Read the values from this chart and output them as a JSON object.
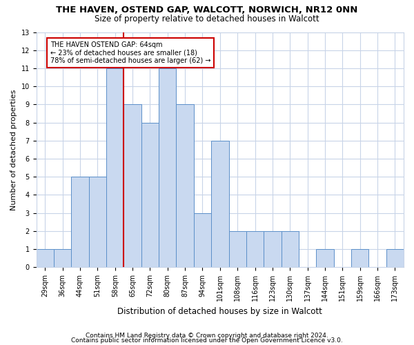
{
  "title1": "THE HAVEN, OSTEND GAP, WALCOTT, NORWICH, NR12 0NN",
  "title2": "Size of property relative to detached houses in Walcott",
  "xlabel": "Distribution of detached houses by size in Walcott",
  "ylabel": "Number of detached properties",
  "categories": [
    "29sqm",
    "36sqm",
    "44sqm",
    "51sqm",
    "58sqm",
    "65sqm",
    "72sqm",
    "80sqm",
    "87sqm",
    "94sqm",
    "101sqm",
    "108sqm",
    "116sqm",
    "123sqm",
    "130sqm",
    "137sqm",
    "144sqm",
    "151sqm",
    "159sqm",
    "166sqm",
    "173sqm"
  ],
  "values": [
    1,
    1,
    5,
    5,
    11,
    9,
    8,
    11,
    9,
    3,
    7,
    2,
    2,
    2,
    2,
    0,
    1,
    0,
    1,
    0,
    1
  ],
  "bar_color": "#c9d9f0",
  "bar_edgecolor": "#5b8fc9",
  "vline_x_index": 5,
  "marker_line1": "THE HAVEN OSTEND GAP: 64sqm",
  "marker_line2": "← 23% of detached houses are smaller (18)",
  "marker_line3": "78% of semi-detached houses are larger (62) →",
  "annotation_box_color": "#ffffff",
  "annotation_box_edgecolor": "#cc0000",
  "vline_color": "#cc0000",
  "ylim": [
    0,
    13
  ],
  "yticks": [
    0,
    1,
    2,
    3,
    4,
    5,
    6,
    7,
    8,
    9,
    10,
    11,
    12,
    13
  ],
  "footer1": "Contains HM Land Registry data © Crown copyright and database right 2024.",
  "footer2": "Contains public sector information licensed under the Open Government Licence v3.0.",
  "bg_color": "#ffffff",
  "grid_color": "#c8d4e8",
  "title_fontsize": 9.5,
  "subtitle_fontsize": 8.5,
  "xlabel_fontsize": 8.5,
  "ylabel_fontsize": 8,
  "tick_fontsize": 7,
  "annotation_fontsize": 7,
  "footer_fontsize": 6.5
}
